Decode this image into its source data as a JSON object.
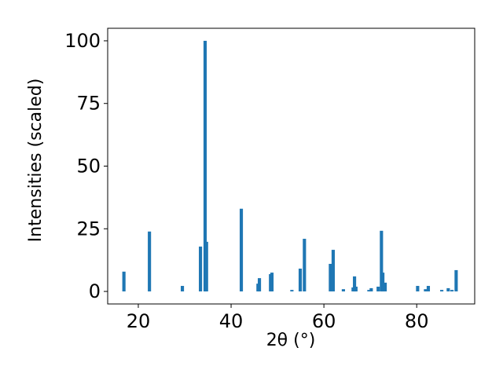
{
  "chart_data": {
    "type": "bar",
    "xlabel": "2θ (°)",
    "ylabel": "Intensities (scaled)",
    "x": [
      16.9,
      22.4,
      29.5,
      33.4,
      34.4,
      34.7,
      42.2,
      45.8,
      46.1,
      48.5,
      48.8,
      53.1,
      54.9,
      55.8,
      61.4,
      62.0,
      64.2,
      66.3,
      66.6,
      66.9,
      69.7,
      70.2,
      71.7,
      72.4,
      72.7,
      73.2,
      80.2,
      81.9,
      82.5,
      85.4,
      86.8,
      87.6,
      88.5
    ],
    "values": [
      7.9,
      23.9,
      2.2,
      17.9,
      100,
      19.8,
      33,
      3.1,
      5.3,
      6.9,
      7.5,
      0.6,
      9.1,
      21,
      11,
      16.6,
      0.9,
      1.6,
      6,
      1.9,
      0.6,
      1.3,
      1.9,
      24.2,
      7.5,
      3.5,
      2.2,
      0.9,
      2.2,
      0.6,
      1.3,
      0.6,
      8.5
    ],
    "color": "#1f77b4",
    "xlim": [
      13.4,
      92.5
    ],
    "xticks": [
      20,
      40,
      60,
      80
    ],
    "ylim": [
      -5,
      105
    ],
    "yticks": [
      0,
      25,
      50,
      75,
      100
    ]
  }
}
